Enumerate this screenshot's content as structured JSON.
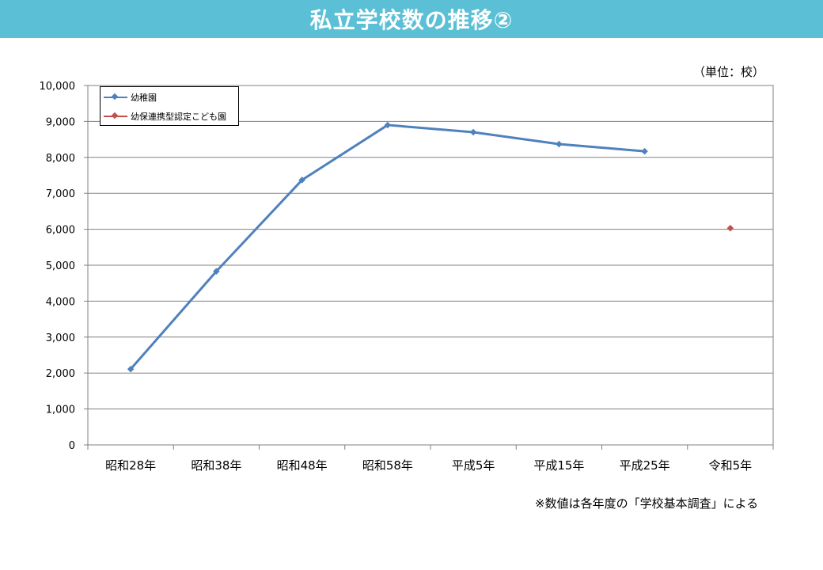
{
  "header": {
    "title": "私立学校数の推移②"
  },
  "unit_label": "（単位：校）",
  "source_note": "※数値は各年度の「学校基本調査」による",
  "colors": {
    "title_bg": "#5bc0d5",
    "series1": "#4f81bd",
    "series2": "#c0504d",
    "grid": "#808080"
  },
  "chart_data": {
    "type": "line",
    "categories": [
      "昭和28年",
      "昭和38年",
      "昭和48年",
      "昭和58年",
      "平成5年",
      "平成15年",
      "平成25年",
      "令和5年"
    ],
    "series": [
      {
        "name": "幼稚園",
        "values": [
          2110,
          4830,
          7370,
          8900,
          8700,
          8370,
          8170,
          null
        ]
      },
      {
        "name": "幼保連携型認定こども園",
        "values": [
          null,
          null,
          null,
          null,
          null,
          null,
          null,
          6030
        ]
      }
    ],
    "ylim": [
      0,
      10000
    ],
    "yticks": [
      "0",
      "1,000",
      "2,000",
      "3,000",
      "4,000",
      "5,000",
      "6,000",
      "7,000",
      "8,000",
      "9,000",
      "10,000"
    ],
    "grid": true,
    "legend_position": "top-left"
  }
}
